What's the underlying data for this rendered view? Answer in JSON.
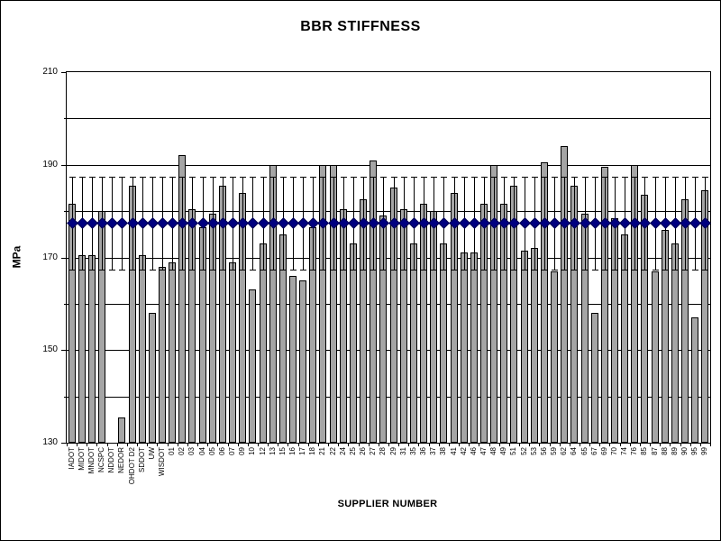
{
  "title": "BBR STIFFNESS",
  "chart_data": {
    "type": "bar",
    "title": "BBR STIFFNESS",
    "xlabel": "SUPPLIER NUMBER",
    "ylabel": "MPa",
    "ylim": [
      130,
      210
    ],
    "y_major_tick_step": 20,
    "y_gridline_step": 10,
    "y_major_ticks": [
      130,
      150,
      170,
      190,
      210
    ],
    "grid": "horizontal",
    "legend_position": "none",
    "plot_border": true,
    "categories": [
      "IADOT",
      "MIDOT",
      "MNDOT",
      "NCSPC",
      "NDDOT",
      "NEDOR",
      "OHDOT D2",
      "SDDOT",
      "UW",
      "WISDOT",
      "01",
      "02",
      "03",
      "04",
      "05",
      "06",
      "07",
      "09",
      "10",
      "12",
      "13",
      "15",
      "16",
      "17",
      "18",
      "21",
      "22",
      "24",
      "25",
      "26",
      "27",
      "28",
      "29",
      "31",
      "35",
      "36",
      "37",
      "38",
      "41",
      "42",
      "46",
      "47",
      "48",
      "49",
      "51",
      "52",
      "53",
      "56",
      "59",
      "62",
      "64",
      "65",
      "67",
      "69",
      "70",
      "74",
      "76",
      "85",
      "87",
      "88",
      "89",
      "90",
      "95",
      "99"
    ],
    "series": [
      {
        "name": "supplier-stiffness-bars",
        "type": "bar",
        "color": "#A5A5A5",
        "border_color": "#000000",
        "values": [
          181.5,
          170.5,
          170.5,
          180,
          null,
          135.5,
          185.5,
          170.5,
          158,
          168,
          169,
          192,
          180.5,
          176.5,
          179.5,
          185.5,
          169,
          184,
          163,
          173,
          190,
          175,
          166,
          165,
          176.5,
          190,
          190,
          180.5,
          173,
          182.5,
          191,
          179,
          185,
          180.5,
          173,
          181.5,
          180,
          173,
          184,
          171,
          171,
          181.5,
          190,
          181.5,
          185.5,
          171.5,
          172,
          190.5,
          167,
          194,
          185.5,
          179.5,
          158,
          189.5,
          178.5,
          175,
          190,
          183.5,
          167,
          176,
          173,
          182.5,
          157,
          184.5
        ]
      },
      {
        "name": "average-line-diamonds",
        "type": "scatter",
        "marker": "diamond",
        "color": "#000080",
        "value_constant": 177.4,
        "error_plus": 10.1,
        "error_minus": 10.1,
        "error_bar_color": "#000000"
      }
    ]
  },
  "colors": {
    "background": "#FFFFFF",
    "frame_border": "#000000",
    "bar_fill": "#A5A5A5",
    "diamond_fill": "#000080",
    "gridline": "#000000",
    "text": "#000000"
  }
}
